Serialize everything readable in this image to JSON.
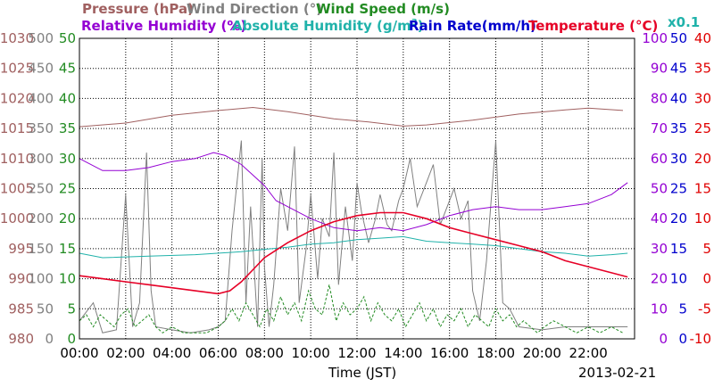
{
  "chart_data": {
    "type": "line",
    "xlabel": "Time (JST)",
    "date": "2013-02-21",
    "x_ticks": [
      "00:00",
      "02:00",
      "04:00",
      "06:00",
      "08:00",
      "10:00",
      "12:00",
      "14:00",
      "16:00",
      "18:00",
      "20:00",
      "22:00"
    ],
    "xlim_hours": [
      0,
      24
    ],
    "grid": "dotted",
    "titles_top": {
      "pressure": "Pressure (hPa)",
      "wind_direction": "Wind Direction (°)",
      "wind_speed": "Wind Speed (m/s)"
    },
    "titles_second": {
      "relative_humidity": "Relative Humidity (%)",
      "absolute_humidity": "Absolute Humidity (g/m",
      "absolute_humidity_sup": "3",
      "absolute_humidity_tail": ")",
      "rain_rate": "Rain Rate(mm/h)",
      "temperature": "Temperature (°C)",
      "rain_scale": "x0.1"
    },
    "axes": {
      "pressure": {
        "color": "#a06060",
        "ticks": [
          "1030",
          "1025",
          "1020",
          "1015",
          "1010",
          "1005",
          "1000",
          "995",
          "990",
          "985",
          "980"
        ],
        "range": [
          980,
          1030
        ]
      },
      "wind_direction": {
        "color": "#808080",
        "ticks": [
          "500",
          "450",
          "400",
          "350",
          "300",
          "250",
          "200",
          "150",
          "100",
          "50",
          "0"
        ],
        "range": [
          0,
          500
        ]
      },
      "wind_speed": {
        "color": "#228b22",
        "ticks": [
          "50",
          "45",
          "40",
          "35",
          "30",
          "25",
          "20",
          "15",
          "10",
          "5",
          "0"
        ],
        "range": [
          0,
          50
        ]
      },
      "relative_humidity": {
        "color": "#9400d3",
        "ticks": [
          "100",
          "90",
          "80",
          "70",
          "60",
          "50",
          "40",
          "30",
          "20",
          "10",
          "0"
        ],
        "range": [
          0,
          100
        ]
      },
      "rain_rate": {
        "color": "#0000cd",
        "ticks": [
          "50",
          "45",
          "40",
          "35",
          "30",
          "25",
          "20",
          "15",
          "10",
          "5",
          "0"
        ],
        "range": [
          0,
          50
        ]
      },
      "temperature": {
        "color": "#e00000",
        "ticks": [
          "40",
          "35",
          "30",
          "25",
          "20",
          "15",
          "10",
          "5",
          "0",
          "-5",
          "-10"
        ],
        "range": [
          -10,
          40
        ]
      }
    },
    "series": [
      {
        "name": "Pressure (hPa)",
        "color": "#a06060",
        "x": [
          0,
          2,
          4,
          6,
          7.5,
          9,
          11,
          12.5,
          14,
          15,
          17,
          19,
          21,
          22,
          23.5
        ],
        "y": [
          1015.3,
          1015.9,
          1017.2,
          1018.0,
          1018.5,
          1017.8,
          1016.6,
          1016.1,
          1015.4,
          1015.6,
          1016.4,
          1017.4,
          1018.1,
          1018.4,
          1018.0
        ]
      },
      {
        "name": "Relative Humidity (%)",
        "color": "#9400d3",
        "x": [
          0,
          1,
          2,
          3,
          4,
          5,
          5.8,
          6.3,
          7,
          8,
          8.5,
          9,
          10,
          11,
          12,
          13,
          14,
          15,
          16,
          17,
          18,
          19,
          20,
          21,
          22,
          23,
          23.7
        ],
        "y": [
          60,
          56,
          56,
          57,
          59,
          60,
          62,
          61,
          58,
          51,
          46,
          44,
          40,
          37,
          36,
          37,
          36,
          38,
          41,
          43,
          44,
          43,
          43,
          44,
          45,
          48,
          52
        ]
      },
      {
        "name": "Absolute Humidity (g/m3)",
        "color": "#20b2aa",
        "x": [
          0,
          1,
          3,
          5,
          7,
          8,
          9,
          10,
          11,
          12,
          13,
          14,
          15,
          16,
          17,
          18,
          19,
          20,
          21,
          22,
          23,
          23.7
        ],
        "y": [
          28.5,
          27.0,
          27.5,
          28.0,
          29.0,
          29.8,
          30.5,
          31.5,
          32.0,
          33.0,
          33.5,
          34.0,
          32.5,
          32.0,
          31.5,
          31.0,
          30.0,
          29.0,
          28.5,
          27.5,
          28.0,
          28.5
        ]
      },
      {
        "name": "Temperature (°C)",
        "color": "#e60026",
        "x": [
          0,
          1,
          2,
          3,
          4,
          5,
          6,
          6.5,
          7,
          7.5,
          8,
          9,
          10,
          11,
          12,
          13,
          14,
          15,
          16,
          17,
          18,
          19,
          20,
          21,
          22,
          23,
          23.7
        ],
        "y": [
          0.5,
          0.0,
          -0.5,
          -1.0,
          -1.5,
          -2.0,
          -2.5,
          -2.0,
          -0.5,
          1.5,
          3.5,
          6.0,
          8.0,
          9.5,
          10.5,
          11.0,
          11.0,
          10.0,
          8.5,
          7.5,
          6.5,
          5.5,
          4.5,
          3.0,
          2.0,
          1.0,
          0.3
        ]
      },
      {
        "name": "Wind Direction (°)",
        "color": "#808080",
        "x": [
          0,
          0.3,
          0.6,
          1.0,
          1.6,
          2.0,
          2.3,
          2.6,
          2.9,
          3.1,
          3.3,
          4.0,
          4.8,
          5.6,
          6.0,
          6.3,
          6.6,
          7.0,
          7.2,
          7.4,
          7.7,
          7.9,
          8.0,
          8.2,
          8.4,
          8.7,
          9.0,
          9.3,
          9.5,
          9.8,
          10.0,
          10.3,
          10.5,
          10.8,
          11.0,
          11.2,
          11.5,
          11.8,
          12.0,
          12.2,
          12.5,
          12.8,
          13.0,
          13.3,
          13.5,
          13.8,
          14.0,
          14.3,
          14.6,
          15.0,
          15.3,
          15.6,
          15.9,
          16.2,
          16.5,
          16.8,
          17.0,
          17.3,
          17.6,
          18.0,
          18.3,
          18.6,
          19.0,
          20.0,
          21.0,
          22.0,
          23.0,
          23.7
        ],
        "y": [
          30,
          45,
          60,
          10,
          15,
          240,
          20,
          60,
          310,
          80,
          20,
          15,
          10,
          15,
          20,
          30,
          180,
          330,
          60,
          220,
          20,
          300,
          120,
          20,
          90,
          250,
          180,
          320,
          60,
          150,
          240,
          100,
          200,
          170,
          310,
          90,
          220,
          130,
          260,
          210,
          160,
          200,
          240,
          190,
          180,
          230,
          250,
          300,
          220,
          260,
          290,
          190,
          220,
          250,
          200,
          230,
          80,
          30,
          130,
          330,
          60,
          50,
          20,
          15,
          20,
          20,
          20,
          20
        ]
      },
      {
        "name": "Wind Speed (m/s)",
        "color": "#228b22",
        "x": [
          0,
          0.3,
          0.6,
          0.9,
          1.2,
          1.5,
          1.8,
          2.1,
          2.4,
          2.7,
          3.0,
          3.3,
          3.6,
          4.0,
          4.5,
          5.0,
          5.5,
          6.0,
          6.3,
          6.6,
          6.9,
          7.2,
          7.5,
          7.8,
          8.1,
          8.4,
          8.7,
          9.0,
          9.3,
          9.6,
          9.9,
          10.2,
          10.5,
          10.8,
          11.1,
          11.4,
          11.7,
          12.0,
          12.3,
          12.6,
          12.9,
          13.2,
          13.5,
          13.8,
          14.1,
          14.4,
          14.7,
          15.0,
          15.3,
          15.6,
          15.9,
          16.2,
          16.5,
          16.8,
          17.1,
          17.4,
          17.7,
          18.0,
          18.3,
          18.6,
          18.9,
          19.2,
          19.5,
          19.8,
          20.1,
          20.5,
          21.0,
          21.5,
          22.0,
          22.5,
          23.0,
          23.5
        ],
        "y": [
          3,
          4,
          2,
          4,
          3,
          2,
          4,
          5,
          2,
          3,
          4,
          2,
          1,
          2,
          1,
          1,
          1,
          2,
          3,
          5,
          3,
          6,
          4,
          2,
          5,
          3,
          7,
          4,
          6,
          3,
          8,
          5,
          4,
          9,
          3,
          6,
          4,
          5,
          7,
          3,
          6,
          4,
          3,
          5,
          2,
          4,
          6,
          3,
          5,
          2,
          4,
          3,
          5,
          2,
          4,
          3,
          2,
          5,
          3,
          4,
          2,
          3,
          2,
          1,
          2,
          3,
          2,
          1,
          2,
          1,
          2,
          1
        ]
      },
      {
        "name": "Rain Rate(mm/h)",
        "color": "#0000cd",
        "x": [
          0,
          23.7
        ],
        "y": [
          0,
          0
        ]
      }
    ]
  }
}
